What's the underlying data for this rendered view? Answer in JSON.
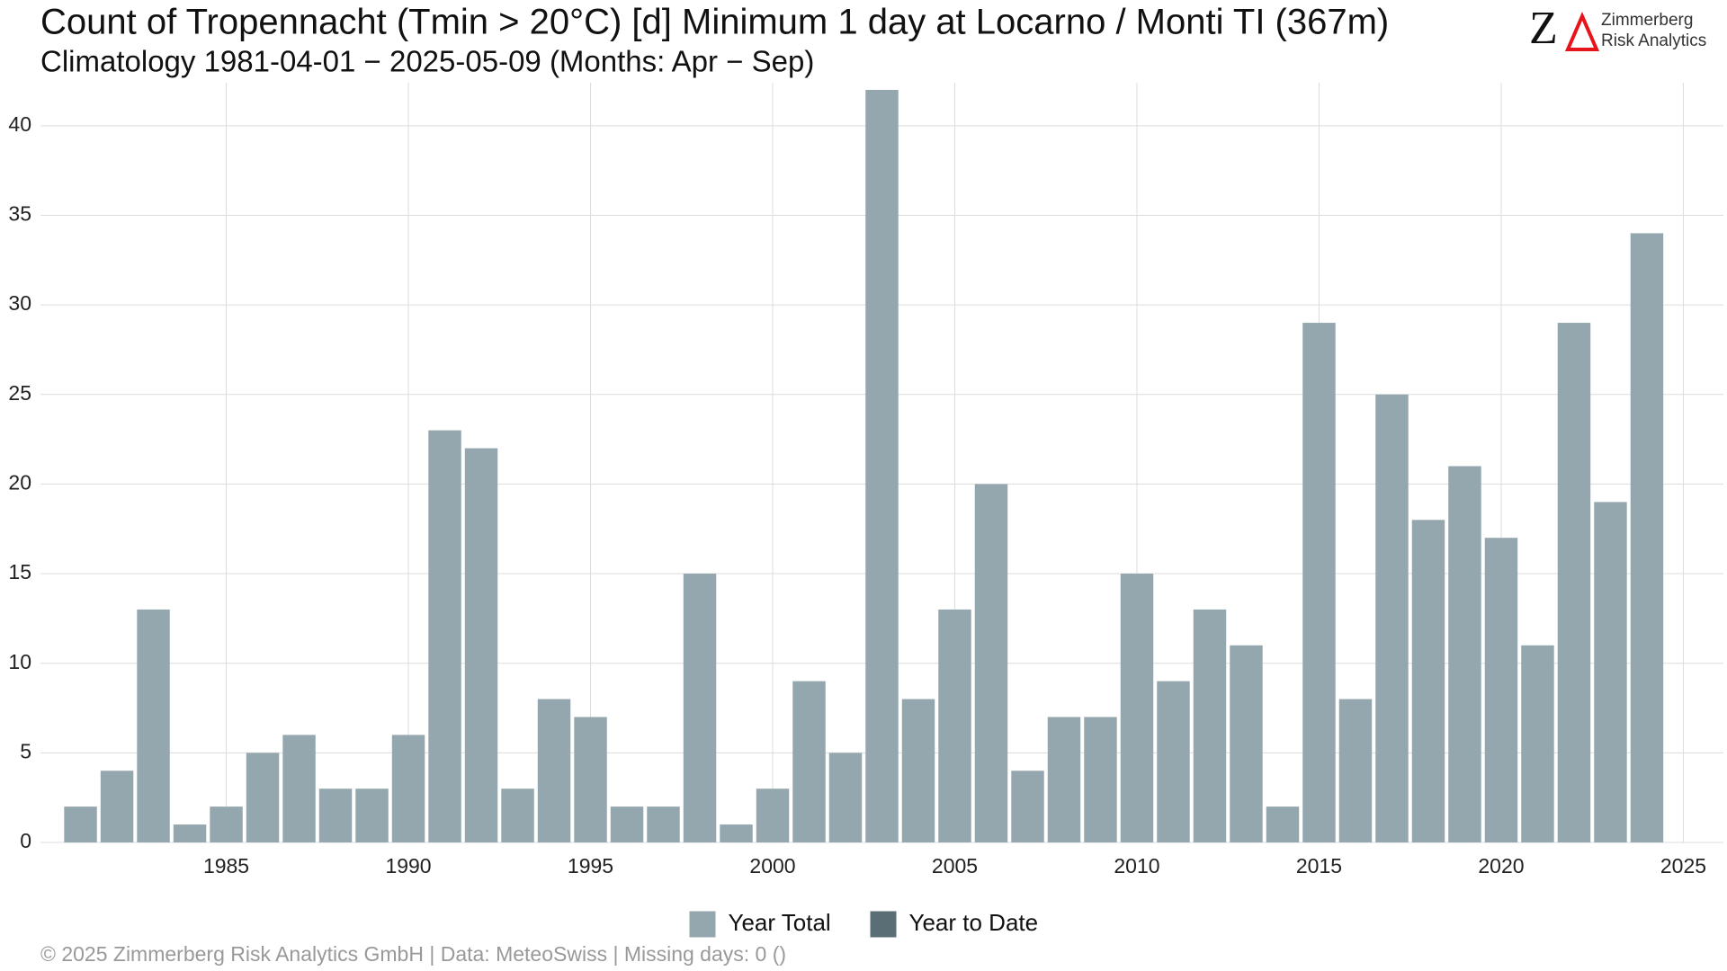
{
  "chart_data": {
    "type": "bar",
    "title": "Count of Tropennacht (Tmin > 20°C) [d] Minimum 1 day at Locarno / Monti  TI (367m)",
    "subtitle": "Climatology 1981-04-01 − 2025-05-09 (Months: Apr − Sep)",
    "footer": "©  2025 Zimmerberg Risk Analytics GmbH | Data: MeteoSwiss | Missing days: 0 ()",
    "x": [
      1981,
      1982,
      1983,
      1984,
      1985,
      1986,
      1987,
      1988,
      1989,
      1990,
      1991,
      1992,
      1993,
      1994,
      1995,
      1996,
      1997,
      1998,
      1999,
      2000,
      2001,
      2002,
      2003,
      2004,
      2005,
      2006,
      2007,
      2008,
      2009,
      2010,
      2011,
      2012,
      2013,
      2014,
      2015,
      2016,
      2017,
      2018,
      2019,
      2020,
      2021,
      2022,
      2023,
      2024
    ],
    "series": [
      {
        "name": "Year Total",
        "color": "#94a7ae",
        "values": [
          2,
          4,
          13,
          1,
          2,
          5,
          6,
          3,
          3,
          6,
          23,
          22,
          3,
          8,
          7,
          2,
          2,
          15,
          1,
          3,
          9,
          5,
          42,
          8,
          13,
          20,
          4,
          7,
          7,
          15,
          9,
          13,
          11,
          2,
          29,
          8,
          25,
          18,
          21,
          17,
          11,
          29,
          19,
          34
        ]
      },
      {
        "name": "Year to Date",
        "color": "#5a6e75",
        "values": [
          null,
          null,
          null,
          null,
          null,
          null,
          null,
          null,
          null,
          null,
          null,
          null,
          null,
          null,
          null,
          null,
          null,
          null,
          null,
          null,
          null,
          null,
          null,
          null,
          null,
          null,
          null,
          null,
          null,
          null,
          null,
          null,
          null,
          null,
          null,
          null,
          null,
          null,
          null,
          null,
          null,
          null,
          null,
          null
        ]
      }
    ],
    "xlim": [
      1979.9,
      2026.1
    ],
    "xticks": [
      1985,
      1990,
      1995,
      2000,
      2005,
      2010,
      2015,
      2020,
      2025
    ],
    "ylim": [
      0,
      42.4
    ],
    "yticks": [
      0,
      5,
      10,
      15,
      20,
      25,
      30,
      35,
      40
    ],
    "grid": true,
    "legend": "bottom"
  },
  "logo": {
    "mark": "Z",
    "lines": [
      "Zimmerberg",
      "Risk Analytics"
    ]
  }
}
